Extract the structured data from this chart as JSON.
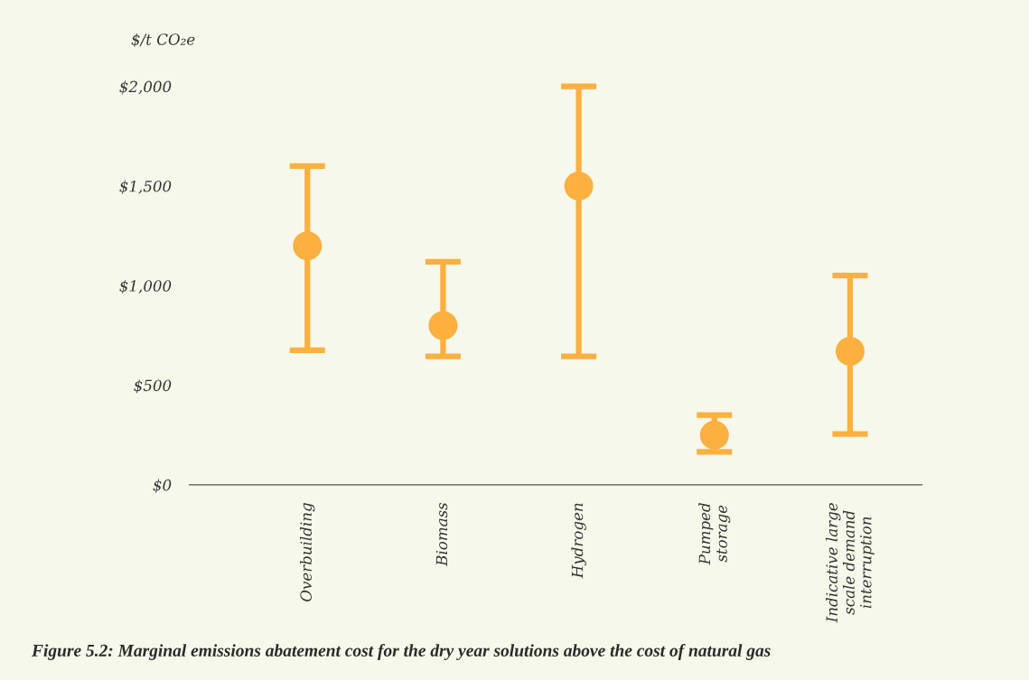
{
  "chart_data": {
    "type": "scatter",
    "ylabel": "$/t CO₂e",
    "categories": [
      "Overbuilding",
      "Biomass",
      "Hydrogen",
      "Pumped\nstorage",
      "Indicative large\nscale demand\ninterruption"
    ],
    "series": [
      {
        "color": "#fbb040",
        "values": [
          1200,
          800,
          1500,
          250,
          670
        ],
        "errors": [
          [
            675,
            1600
          ],
          [
            645,
            1120
          ],
          [
            645,
            2000
          ],
          [
            165,
            350
          ],
          [
            255,
            1050
          ]
        ]
      }
    ],
    "ylim": [
      0,
      2000
    ],
    "yticks": [
      {
        "value": 0,
        "label": "$0"
      },
      {
        "value": 500,
        "label": "$500"
      },
      {
        "value": 1000,
        "label": "$1,000"
      },
      {
        "value": 1500,
        "label": "$1,500"
      },
      {
        "value": 2000,
        "label": "$2,000"
      }
    ],
    "grid": false,
    "legend": false,
    "marker": "circle",
    "annotations": [
      "Figure 5.2: Marginal emissions abatement cost for the dry year solutions above the cost of natural gas"
    ]
  }
}
